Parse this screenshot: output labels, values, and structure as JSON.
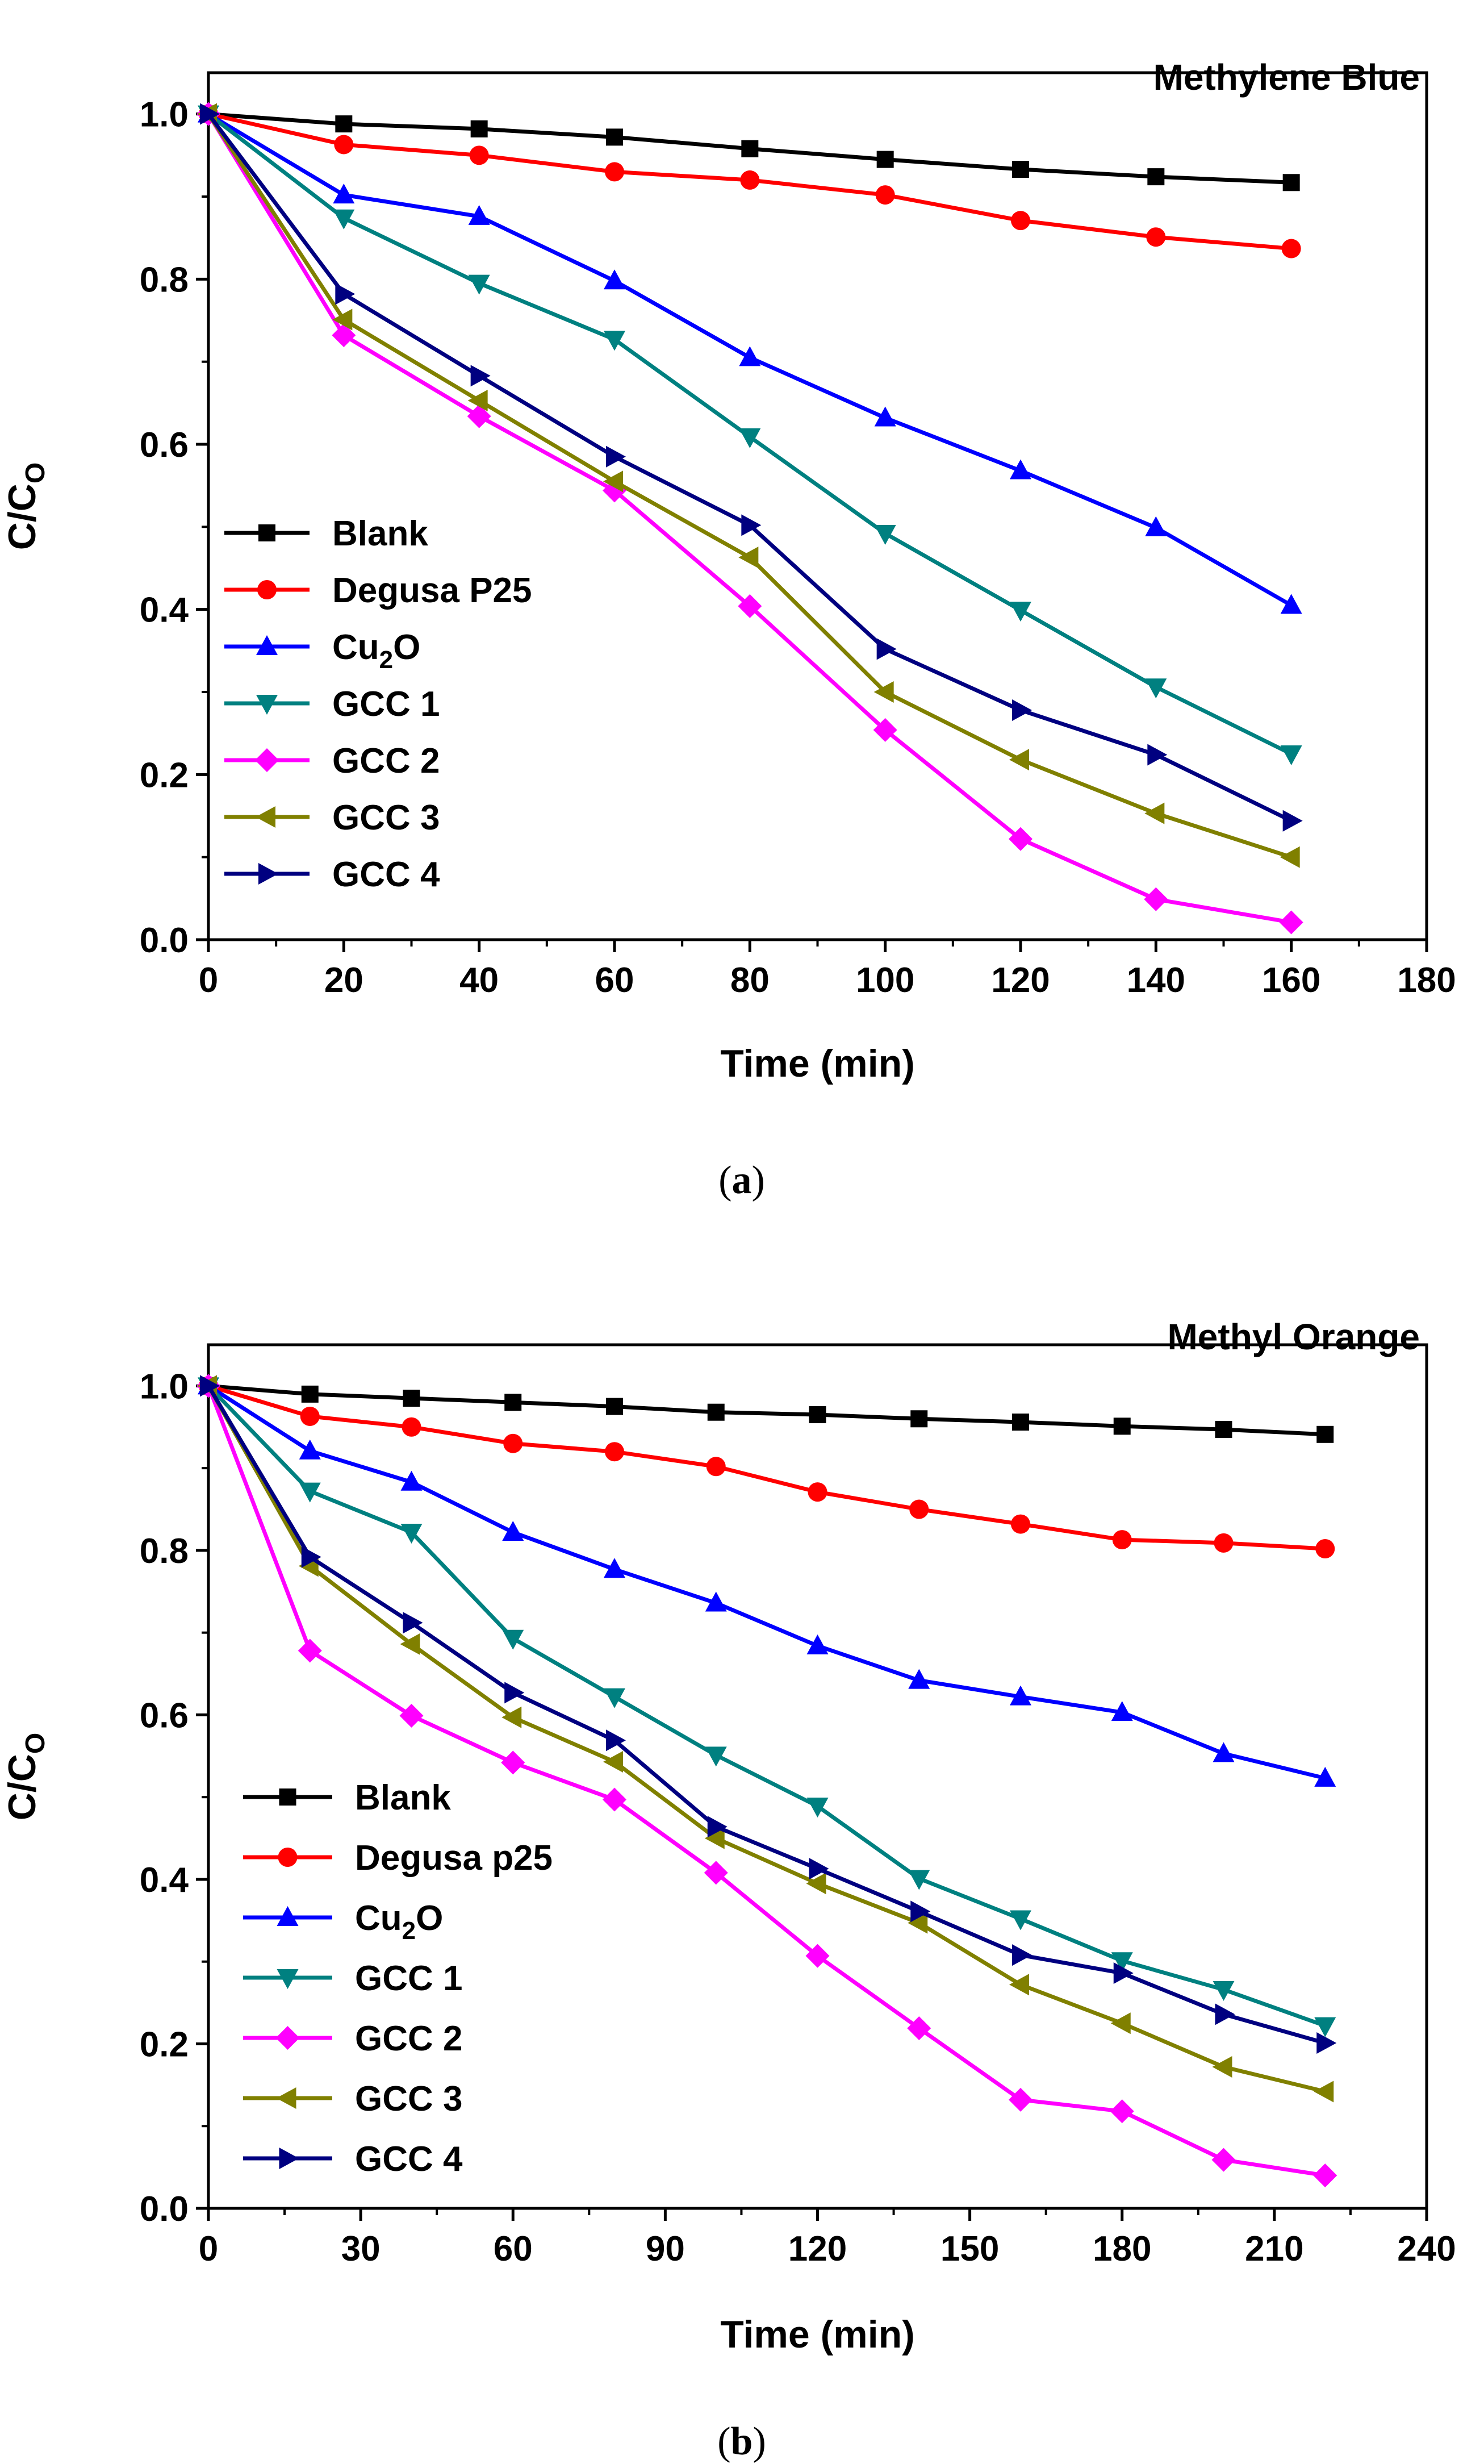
{
  "chart_data": [
    {
      "type": "line",
      "title": "Methylene Blue",
      "caption_open": "(",
      "caption_letter": "a",
      "caption_close": ")",
      "xlabel": "Time (min)",
      "ylabel": "C/C",
      "ylabel_sub": "O",
      "xlim": [
        0,
        180
      ],
      "ylim": [
        0.0,
        1.05
      ],
      "xticks": [
        0,
        20,
        40,
        60,
        80,
        100,
        120,
        140,
        160,
        180
      ],
      "xtick_labels": [
        "0",
        "20",
        "40",
        "60",
        "80",
        "100",
        "120",
        "140",
        "160",
        "180"
      ],
      "yticks": [
        0.0,
        0.2,
        0.4,
        0.6,
        0.8,
        1.0
      ],
      "ytick_labels": [
        "0.0",
        "0.2",
        "0.4",
        "0.6",
        "0.8",
        "1.0"
      ],
      "legend_position": "left",
      "x": [
        0,
        20,
        40,
        60,
        80,
        100,
        120,
        140,
        160
      ],
      "series": [
        {
          "name": "Blank",
          "label_main": "Blank",
          "label_sub": "",
          "label_tail": "",
          "color": "#000000",
          "marker": "square",
          "values": [
            1.0,
            0.988,
            0.982,
            0.972,
            0.958,
            0.945,
            0.933,
            0.924,
            0.917
          ]
        },
        {
          "name": "Degusa P25",
          "label_main": "Degusa P25",
          "label_sub": "",
          "label_tail": "",
          "color": "#ff0000",
          "marker": "circle",
          "values": [
            1.0,
            0.963,
            0.95,
            0.93,
            0.92,
            0.902,
            0.871,
            0.851,
            0.837
          ]
        },
        {
          "name": "Cu2O",
          "label_main": "Cu",
          "label_sub": "2",
          "label_tail": "O",
          "color": "#0000ff",
          "marker": "triangle-up",
          "values": [
            1.0,
            0.902,
            0.876,
            0.798,
            0.705,
            0.632,
            0.568,
            0.499,
            0.405
          ]
        },
        {
          "name": "GCC 1",
          "label_main": "GCC 1",
          "label_sub": "",
          "label_tail": "",
          "color": "#008080",
          "marker": "triangle-down",
          "values": [
            1.0,
            0.874,
            0.795,
            0.727,
            0.609,
            0.492,
            0.399,
            0.306,
            0.225
          ]
        },
        {
          "name": "GCC 2",
          "label_main": "GCC 2",
          "label_sub": "",
          "label_tail": "",
          "color": "#ff00ff",
          "marker": "diamond",
          "values": [
            1.0,
            0.732,
            0.634,
            0.544,
            0.404,
            0.254,
            0.122,
            0.049,
            0.021
          ]
        },
        {
          "name": "GCC 3",
          "label_main": "GCC 3",
          "label_sub": "",
          "label_tail": "",
          "color": "#808000",
          "marker": "triangle-left",
          "values": [
            1.0,
            0.751,
            0.653,
            0.555,
            0.463,
            0.3,
            0.218,
            0.153,
            0.1
          ]
        },
        {
          "name": "GCC 4",
          "label_main": "GCC 4",
          "label_sub": "",
          "label_tail": "",
          "color": "#000080",
          "marker": "triangle-right",
          "values": [
            1.0,
            0.782,
            0.683,
            0.585,
            0.502,
            0.352,
            0.278,
            0.224,
            0.144
          ]
        }
      ]
    },
    {
      "type": "line",
      "title": "Methyl Orange",
      "caption_open": "(",
      "caption_letter": "b",
      "caption_close": ")",
      "xlabel": "Time (min)",
      "ylabel": "C/C",
      "ylabel_sub": "O",
      "xlim": [
        0,
        240
      ],
      "ylim": [
        0.0,
        1.05
      ],
      "xticks": [
        0,
        30,
        60,
        90,
        120,
        150,
        180,
        210,
        240
      ],
      "xtick_labels": [
        "0",
        "30",
        "60",
        "90",
        "120",
        "150",
        "180",
        "210",
        "240"
      ],
      "yticks": [
        0.0,
        0.2,
        0.4,
        0.6,
        0.8,
        1.0
      ],
      "ytick_labels": [
        "0.0",
        "0.2",
        "0.4",
        "0.6",
        "0.8",
        "1.0"
      ],
      "legend_position": "left",
      "x": [
        0,
        20,
        40,
        60,
        80,
        100,
        120,
        140,
        160,
        180,
        200,
        220
      ],
      "series": [
        {
          "name": "Blank",
          "label_main": "Blank",
          "label_sub": "",
          "label_tail": "",
          "color": "#000000",
          "marker": "square",
          "values": [
            1.0,
            0.99,
            0.985,
            0.98,
            0.975,
            0.968,
            0.965,
            0.96,
            0.956,
            0.951,
            0.947,
            0.941
          ]
        },
        {
          "name": "Degusa p25",
          "label_main": "Degusa p25",
          "label_sub": "",
          "label_tail": "",
          "color": "#ff0000",
          "marker": "circle",
          "values": [
            1.0,
            0.963,
            0.95,
            0.93,
            0.92,
            0.902,
            0.871,
            0.85,
            0.832,
            0.813,
            0.809,
            0.802
          ]
        },
        {
          "name": "Cu2O",
          "label_main": "Cu",
          "label_sub": "2",
          "label_tail": "O",
          "color": "#0000ff",
          "marker": "triangle-up",
          "values": [
            1.0,
            0.921,
            0.883,
            0.822,
            0.777,
            0.736,
            0.684,
            0.642,
            0.622,
            0.603,
            0.553,
            0.523
          ]
        },
        {
          "name": "GCC 1",
          "label_main": "GCC 1",
          "label_sub": "",
          "label_tail": "",
          "color": "#008080",
          "marker": "triangle-down",
          "values": [
            1.0,
            0.872,
            0.822,
            0.693,
            0.622,
            0.551,
            0.489,
            0.401,
            0.352,
            0.301,
            0.266,
            0.222
          ]
        },
        {
          "name": "GCC 2",
          "label_main": "GCC 2",
          "label_sub": "",
          "label_tail": "",
          "color": "#ff00ff",
          "marker": "diamond",
          "values": [
            1.0,
            0.678,
            0.599,
            0.542,
            0.497,
            0.408,
            0.307,
            0.219,
            0.132,
            0.118,
            0.059,
            0.04
          ]
        },
        {
          "name": "GCC 3",
          "label_main": "GCC 3",
          "label_sub": "",
          "label_tail": "",
          "color": "#808000",
          "marker": "triangle-left",
          "values": [
            1.0,
            0.781,
            0.686,
            0.597,
            0.543,
            0.45,
            0.395,
            0.347,
            0.272,
            0.225,
            0.172,
            0.142
          ]
        },
        {
          "name": "GCC 4",
          "label_main": "GCC 4",
          "label_sub": "",
          "label_tail": "",
          "color": "#000080",
          "marker": "triangle-right",
          "values": [
            1.0,
            0.792,
            0.712,
            0.627,
            0.569,
            0.464,
            0.413,
            0.361,
            0.308,
            0.286,
            0.236,
            0.201
          ]
        }
      ]
    }
  ]
}
